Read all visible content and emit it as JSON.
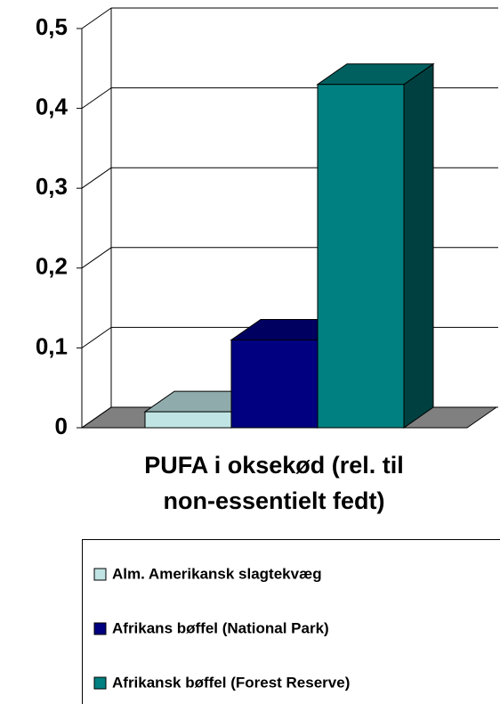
{
  "chart_data": {
    "type": "bar3d",
    "categories": [
      null
    ],
    "xlabel": [
      "PUFA i oksekød (rel. til",
      "non-essentielt fedt)"
    ],
    "series": [
      {
        "name": "Alm. Amerikansk slagtekvæg",
        "color": "#c0e4e4",
        "values": [
          0.02
        ]
      },
      {
        "name": "Afrikans bøffel (National Park)",
        "color": "#000080",
        "values": [
          0.11
        ]
      },
      {
        "name": "Afrikansk bøffel (Forest Reserve)",
        "color": "#008080",
        "values": [
          0.43
        ]
      }
    ],
    "ylim": [
      0,
      0.5
    ],
    "yticks": [
      0,
      {
        "value": 0.1,
        "label": "0,1"
      },
      {
        "value": 0.2,
        "label": "0,2"
      },
      {
        "value": 0.3,
        "label": "0,3"
      },
      {
        "value": 0.4,
        "label": "0,4"
      },
      {
        "value": 0.5,
        "label": "0,5"
      }
    ],
    "grid": true,
    "legend": "bottom"
  }
}
